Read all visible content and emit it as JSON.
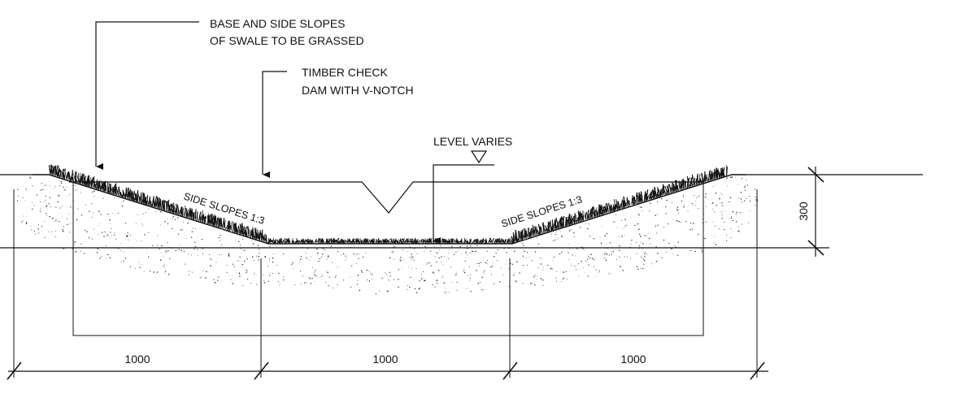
{
  "labels": {
    "callout_grass_line1": "BASE AND SIDE SLOPES",
    "callout_grass_line2": "OF SWALE TO BE GRASSED",
    "callout_dam_line1": "TIMBER CHECK",
    "callout_dam_line2": "DAM WITH V-NOTCH",
    "level_varies": "LEVEL VARIES",
    "side_slope_left": "SIDE SLOPES 1:3",
    "side_slope_right": "SIDE SLOPES 1:3"
  },
  "dimensions": {
    "width_left": "1000",
    "width_center": "1000",
    "width_right": "1000",
    "depth": "300"
  },
  "colors": {
    "line": "#111111",
    "background": "#ffffff"
  }
}
